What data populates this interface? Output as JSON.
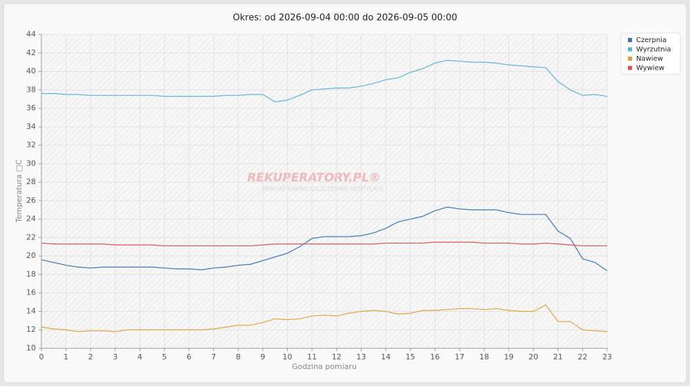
{
  "chart_data": {
    "type": "line",
    "title": "Okres: od 2026-09-04 00:00 do 2026-09-05 00:00",
    "x_label": "Godzina pomiaru",
    "y_label": "Temperatura □C",
    "watermark": {
      "title": "REKUPERATORY.PL®",
      "subtitle": "MONTAŻ ENERGOOSZCZĘDNEJ WENTYLACJI"
    },
    "x": [
      0,
      0.5,
      1,
      1.5,
      2,
      2.5,
      3,
      3.5,
      4,
      4.5,
      5,
      5.5,
      6,
      6.5,
      7,
      7.5,
      8,
      8.5,
      9,
      9.5,
      10,
      10.5,
      11,
      11.5,
      12,
      12.5,
      13,
      13.5,
      14,
      14.5,
      15,
      15.5,
      16,
      16.5,
      17,
      17.5,
      18,
      18.5,
      19,
      19.5,
      20,
      20.5,
      21,
      21.5,
      22,
      22.5,
      23
    ],
    "series": [
      {
        "name": "Czerpnia",
        "color": "#3a74b4",
        "values": [
          19.6,
          19.3,
          19.0,
          18.8,
          18.7,
          18.8,
          18.8,
          18.8,
          18.8,
          18.8,
          18.7,
          18.6,
          18.6,
          18.5,
          18.7,
          18.8,
          19.0,
          19.1,
          19.5,
          19.9,
          20.3,
          21.0,
          21.9,
          22.1,
          22.1,
          22.1,
          22.2,
          22.5,
          23.0,
          23.7,
          24.0,
          24.3,
          24.9,
          25.3,
          25.1,
          25.0,
          25.0,
          25.0,
          24.7,
          24.5,
          24.5,
          24.5,
          22.7,
          21.9,
          19.7,
          19.3,
          18.4
        ]
      },
      {
        "name": "Wyrzutnia",
        "color": "#5ab4d8",
        "values": [
          37.6,
          37.6,
          37.5,
          37.5,
          37.4,
          37.4,
          37.4,
          37.4,
          37.4,
          37.4,
          37.3,
          37.3,
          37.3,
          37.3,
          37.3,
          37.4,
          37.4,
          37.5,
          37.5,
          36.7,
          36.9,
          37.4,
          38.0,
          38.1,
          38.2,
          38.2,
          38.4,
          38.7,
          39.1,
          39.3,
          39.9,
          40.3,
          40.9,
          41.2,
          41.1,
          41.0,
          41.0,
          40.9,
          40.7,
          40.6,
          40.5,
          40.4,
          38.9,
          38.0,
          37.4,
          37.5,
          37.3
        ]
      },
      {
        "name": "Nawiew",
        "color": "#e0a33a",
        "values": [
          12.3,
          12.1,
          12.0,
          11.8,
          11.9,
          11.9,
          11.8,
          12.0,
          12.0,
          12.0,
          12.0,
          12.0,
          12.0,
          12.0,
          12.1,
          12.3,
          12.5,
          12.5,
          12.8,
          13.2,
          13.1,
          13.2,
          13.5,
          13.6,
          13.5,
          13.8,
          14.0,
          14.1,
          14.0,
          13.7,
          13.8,
          14.1,
          14.1,
          14.2,
          14.3,
          14.3,
          14.2,
          14.3,
          14.1,
          14.0,
          14.0,
          14.7,
          12.9,
          12.9,
          12.0,
          11.9,
          11.8
        ]
      },
      {
        "name": "Wywiew",
        "color": "#d9534f",
        "values": [
          21.4,
          21.3,
          21.3,
          21.3,
          21.3,
          21.3,
          21.2,
          21.2,
          21.2,
          21.2,
          21.1,
          21.1,
          21.1,
          21.1,
          21.1,
          21.1,
          21.1,
          21.1,
          21.2,
          21.3,
          21.3,
          21.3,
          21.3,
          21.3,
          21.3,
          21.3,
          21.3,
          21.3,
          21.4,
          21.4,
          21.4,
          21.4,
          21.5,
          21.5,
          21.5,
          21.5,
          21.4,
          21.4,
          21.4,
          21.3,
          21.3,
          21.4,
          21.3,
          21.2,
          21.1,
          21.1,
          21.1
        ]
      }
    ],
    "xlim": [
      0,
      23
    ],
    "xticks": [
      0,
      1,
      2,
      3,
      4,
      5,
      6,
      7,
      8,
      9,
      10,
      11,
      12,
      13,
      14,
      15,
      16,
      17,
      18,
      19,
      20,
      21,
      22,
      23
    ],
    "ylim": [
      10,
      44
    ],
    "yticks": [
      10,
      12,
      14,
      16,
      18,
      20,
      22,
      24,
      26,
      28,
      30,
      32,
      34,
      36,
      38,
      40,
      42,
      44
    ],
    "grid": true,
    "legend": "top-right"
  }
}
